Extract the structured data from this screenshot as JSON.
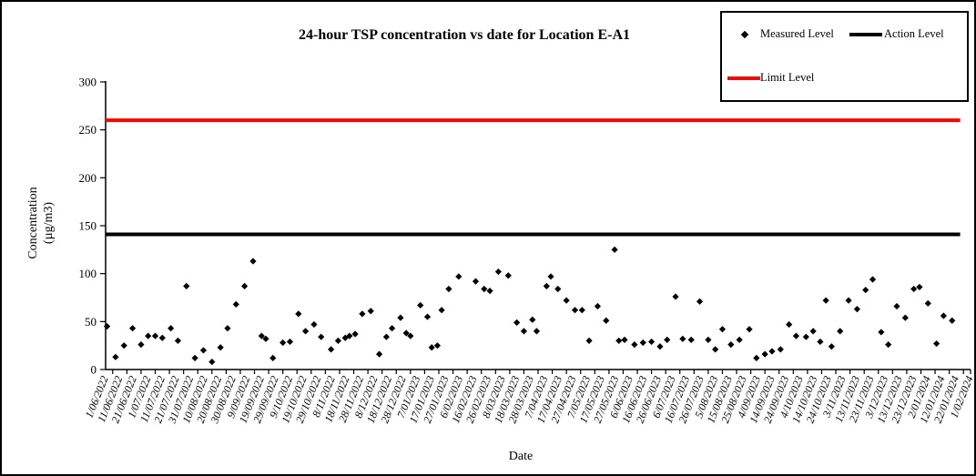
{
  "title": "24-hour TSP concentration vs date for Location E-A1",
  "legend": {
    "measured_label": "Measured Level",
    "action_label": "Action Level",
    "limit_label": "Limit Level"
  },
  "y_axis": {
    "title_line1": "Concentration",
    "title_line2": "(µg/m3)"
  },
  "x_axis": {
    "title": "Date"
  },
  "colors": {
    "measured": "#000000",
    "action": "#000000",
    "limit": "#ff0000"
  },
  "chart_data": {
    "type": "scatter",
    "title": "24-hour TSP concentration vs date for Location E-A1",
    "xlabel": "Date",
    "ylabel": "Concentration (µg/m3)",
    "ylim": [
      0,
      300
    ],
    "y_ticks": [
      0,
      50,
      100,
      150,
      200,
      250,
      300
    ],
    "grid": false,
    "legend_position": "top-right",
    "x_start_date": "1/06/2022",
    "x_end_date": "1/02/2024",
    "x_tick_labels": [
      "1/06/2022",
      "11/06/2022",
      "21/06/2022",
      "1/07/2022",
      "11/07/2022",
      "21/07/2022",
      "31/07/2022",
      "10/08/2022",
      "20/08/2022",
      "30/08/2022",
      "9/09/2022",
      "19/09/2022",
      "29/09/2022",
      "9/10/2022",
      "19/10/2022",
      "29/10/2022",
      "8/11/2022",
      "18/11/2022",
      "28/11/2022",
      "8/12/2022",
      "18/12/2022",
      "28/12/2022",
      "7/01/2023",
      "17/01/2023",
      "27/01/2023",
      "6/02/2023",
      "16/02/2023",
      "26/02/2023",
      "8/03/2023",
      "18/03/2023",
      "28/03/2023",
      "7/04/2023",
      "17/04/2023",
      "27/04/2023",
      "7/05/2023",
      "17/05/2023",
      "27/05/2023",
      "6/06/2023",
      "16/06/2023",
      "26/06/2023",
      "6/07/2023",
      "16/07/2023",
      "26/07/2023",
      "5/08/2023",
      "15/08/2023",
      "25/08/2023",
      "4/09/2023",
      "14/09/2023",
      "24/09/2023",
      "4/10/2023",
      "14/10/2023",
      "24/10/2023",
      "3/11/2023",
      "13/11/2023",
      "23/11/2023",
      "3/12/2023",
      "13/12/2023",
      "23/12/2023",
      "2/01/2024",
      "12/01/2024",
      "22/01/2024",
      "1/02/2024"
    ],
    "series": [
      {
        "name": "Measured Level",
        "type": "scatter",
        "marker": "diamond",
        "color": "#000000",
        "points": [
          [
            "2/06/2022",
            45
          ],
          [
            "8/06/2022",
            13
          ],
          [
            "14/06/2022",
            25
          ],
          [
            "20/06/2022",
            43
          ],
          [
            "26/06/2022",
            26
          ],
          [
            "1/07/2022",
            35
          ],
          [
            "6/07/2022",
            35
          ],
          [
            "11/07/2022",
            33
          ],
          [
            "17/07/2022",
            43
          ],
          [
            "22/07/2022",
            30
          ],
          [
            "28/07/2022",
            87
          ],
          [
            "3/08/2022",
            12
          ],
          [
            "9/08/2022",
            20
          ],
          [
            "15/08/2022",
            8
          ],
          [
            "21/08/2022",
            23
          ],
          [
            "26/08/2022",
            43
          ],
          [
            "1/09/2022",
            68
          ],
          [
            "7/09/2022",
            87
          ],
          [
            "13/09/2022",
            113
          ],
          [
            "19/09/2022",
            35
          ],
          [
            "22/09/2022",
            32
          ],
          [
            "27/09/2022",
            12
          ],
          [
            "4/10/2022",
            28
          ],
          [
            "9/10/2022",
            29
          ],
          [
            "15/10/2022",
            58
          ],
          [
            "20/10/2022",
            40
          ],
          [
            "26/10/2022",
            47
          ],
          [
            "31/10/2022",
            34
          ],
          [
            "7/11/2022",
            21
          ],
          [
            "12/11/2022",
            30
          ],
          [
            "17/11/2022",
            33
          ],
          [
            "20/11/2022",
            35
          ],
          [
            "24/11/2022",
            37
          ],
          [
            "29/11/2022",
            58
          ],
          [
            "5/12/2022",
            61
          ],
          [
            "11/12/2022",
            16
          ],
          [
            "16/12/2022",
            34
          ],
          [
            "20/12/2022",
            43
          ],
          [
            "26/12/2022",
            54
          ],
          [
            "30/12/2022",
            38
          ],
          [
            "2/01/2023",
            35
          ],
          [
            "9/01/2023",
            67
          ],
          [
            "14/01/2023",
            55
          ],
          [
            "17/01/2023",
            23
          ],
          [
            "21/01/2023",
            25
          ],
          [
            "24/01/2023",
            62
          ],
          [
            "29/01/2023",
            84
          ],
          [
            "5/02/2023",
            97
          ],
          [
            "17/02/2023",
            92
          ],
          [
            "23/02/2023",
            84
          ],
          [
            "27/02/2023",
            82
          ],
          [
            "5/03/2023",
            102
          ],
          [
            "12/03/2023",
            98
          ],
          [
            "18/03/2023",
            49
          ],
          [
            "23/03/2023",
            40
          ],
          [
            "29/03/2023",
            52
          ],
          [
            "1/04/2023",
            40
          ],
          [
            "8/04/2023",
            87
          ],
          [
            "11/04/2023",
            97
          ],
          [
            "16/04/2023",
            84
          ],
          [
            "22/04/2023",
            72
          ],
          [
            "28/04/2023",
            62
          ],
          [
            "3/05/2023",
            62
          ],
          [
            "8/05/2023",
            30
          ],
          [
            "14/05/2023",
            66
          ],
          [
            "20/05/2023",
            51
          ],
          [
            "26/05/2023",
            125
          ],
          [
            "29/05/2023",
            30
          ],
          [
            "2/06/2023",
            31
          ],
          [
            "9/06/2023",
            26
          ],
          [
            "15/06/2023",
            28
          ],
          [
            "21/06/2023",
            29
          ],
          [
            "27/06/2023",
            24
          ],
          [
            "2/07/2023",
            31
          ],
          [
            "8/07/2023",
            76
          ],
          [
            "13/07/2023",
            32
          ],
          [
            "19/07/2023",
            31
          ],
          [
            "25/07/2023",
            71
          ],
          [
            "31/07/2023",
            31
          ],
          [
            "5/08/2023",
            21
          ],
          [
            "10/08/2023",
            42
          ],
          [
            "16/08/2023",
            26
          ],
          [
            "22/08/2023",
            31
          ],
          [
            "29/08/2023",
            42
          ],
          [
            "3/09/2023",
            12
          ],
          [
            "9/09/2023",
            16
          ],
          [
            "14/09/2023",
            19
          ],
          [
            "20/09/2023",
            21
          ],
          [
            "26/09/2023",
            47
          ],
          [
            "1/10/2023",
            35
          ],
          [
            "8/10/2023",
            34
          ],
          [
            "13/10/2023",
            40
          ],
          [
            "18/10/2023",
            29
          ],
          [
            "22/10/2023",
            72
          ],
          [
            "26/10/2023",
            24
          ],
          [
            "1/11/2023",
            40
          ],
          [
            "7/11/2023",
            72
          ],
          [
            "13/11/2023",
            63
          ],
          [
            "19/11/2023",
            83
          ],
          [
            "24/11/2023",
            94
          ],
          [
            "30/11/2023",
            39
          ],
          [
            "5/12/2023",
            26
          ],
          [
            "11/12/2023",
            66
          ],
          [
            "17/12/2023",
            54
          ],
          [
            "23/12/2023",
            84
          ],
          [
            "27/12/2023",
            86
          ],
          [
            "2/01/2024",
            69
          ],
          [
            "8/01/2024",
            27
          ],
          [
            "13/01/2024",
            56
          ],
          [
            "19/01/2024",
            51
          ]
        ]
      },
      {
        "name": "Action Level",
        "type": "hline",
        "color": "#000000",
        "value": 141
      },
      {
        "name": "Limit Level",
        "type": "hline",
        "color": "#ff0000",
        "value": 260
      }
    ]
  }
}
